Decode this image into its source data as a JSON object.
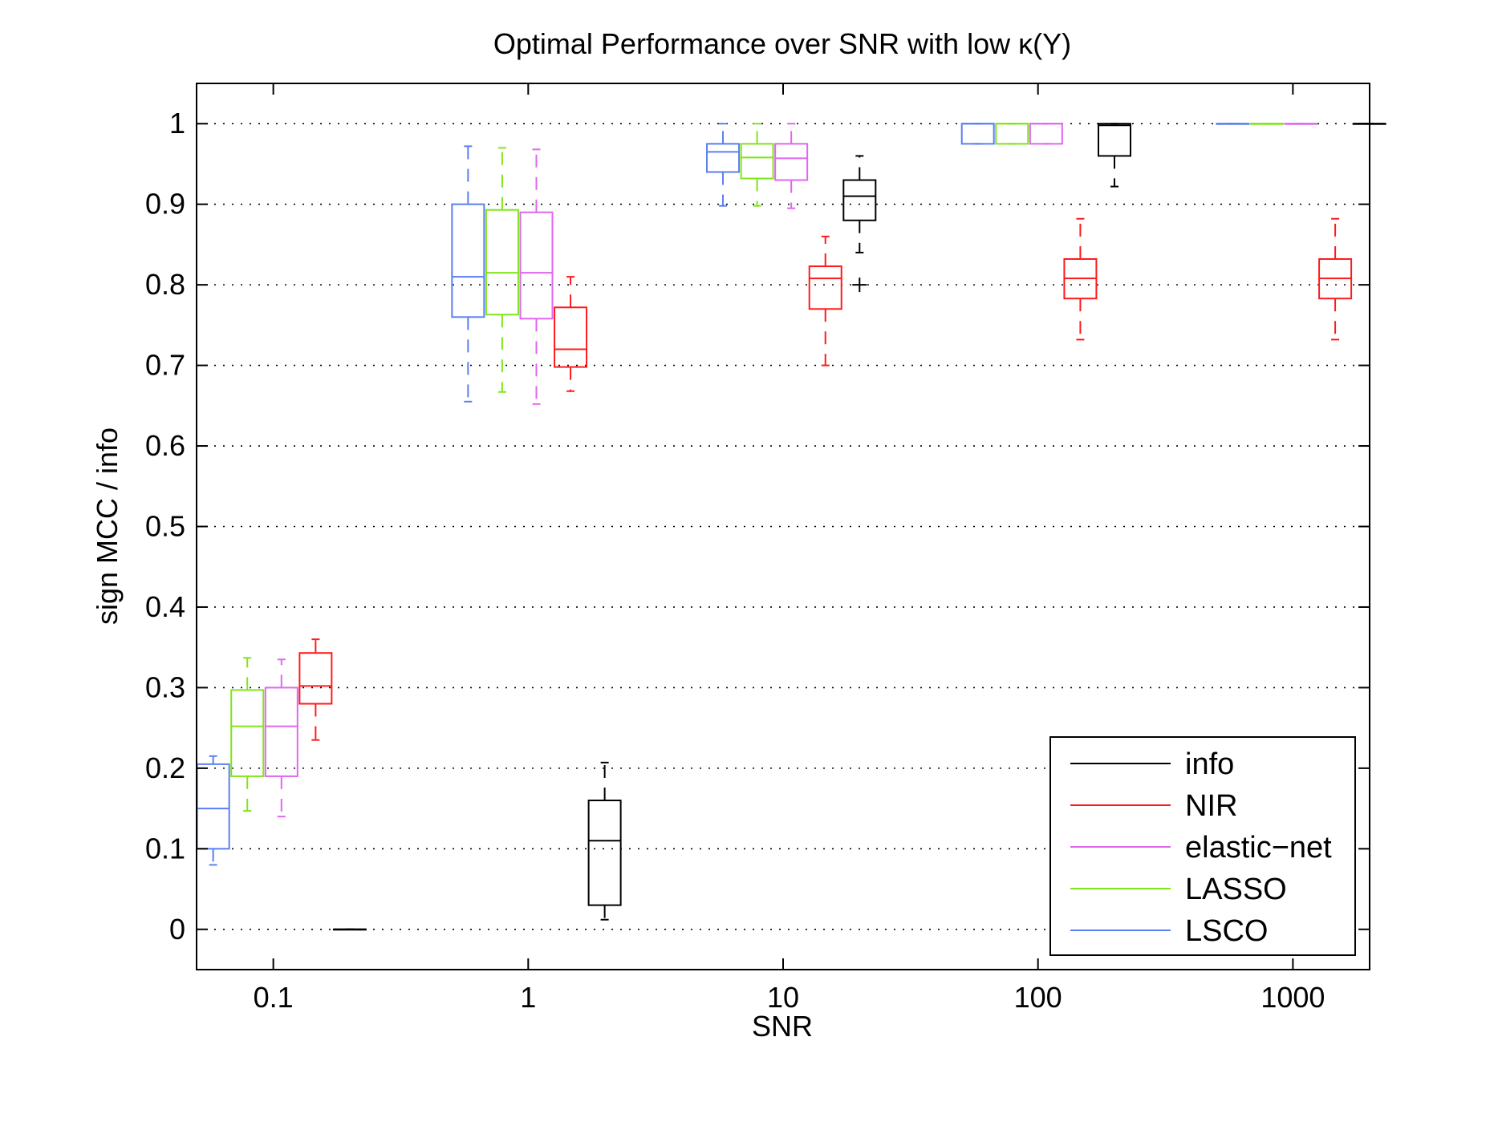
{
  "chart_data": {
    "type": "box",
    "title": "Optimal Performance over SNR with low κ(Y)",
    "xlabel": "SNR",
    "ylabel": "sign MCC / info",
    "x_scale": "log",
    "xlim": [
      0.05,
      2000
    ],
    "ylim": [
      -0.05,
      1.05
    ],
    "x_ticks": [
      0.1,
      1,
      10,
      100,
      1000
    ],
    "x_tick_labels": [
      "0.1",
      "1",
      "10",
      "100",
      "1000"
    ],
    "y_ticks": [
      0,
      0.1,
      0.2,
      0.3,
      0.4,
      0.5,
      0.6,
      0.7,
      0.8,
      0.9,
      1
    ],
    "y_tick_labels": [
      "0",
      "0.1",
      "0.2",
      "0.3",
      "0.4",
      "0.5",
      "0.6",
      "0.7",
      "0.8",
      "0.9",
      "1"
    ],
    "grid": "y-dotted",
    "legend_position": "bottom-right",
    "legend": [
      "info",
      "NIR",
      "elastic−net",
      "LASSO",
      "LSCO"
    ],
    "series_order": [
      "LSCO",
      "LASSO",
      "elastic−net",
      "NIR",
      "info"
    ],
    "colors": {
      "info": "#000000",
      "NIR": "#ff1a1a",
      "elastic−net": "#e066f0",
      "LASSO": "#7fe619",
      "LSCO": "#5b7ff0"
    },
    "snr_groups": [
      0.1,
      1,
      10,
      100,
      1000
    ],
    "series": [
      {
        "name": "LSCO",
        "boxes": [
          {
            "snr": 0.1,
            "whislo": 0.08,
            "q1": 0.1,
            "med": 0.15,
            "q3": 0.205,
            "whishi": 0.215
          },
          {
            "snr": 1,
            "whislo": 0.655,
            "q1": 0.76,
            "med": 0.81,
            "q3": 0.9,
            "whishi": 0.972
          },
          {
            "snr": 10,
            "whislo": 0.898,
            "q1": 0.94,
            "med": 0.965,
            "q3": 0.975,
            "whishi": 1.0
          },
          {
            "snr": 100,
            "whislo": 0.975,
            "q1": 0.975,
            "med": 1.0,
            "q3": 1.0,
            "whishi": 1.0
          },
          {
            "snr": 1000,
            "whislo": 1.0,
            "q1": 1.0,
            "med": 1.0,
            "q3": 1.0,
            "whishi": 1.0
          }
        ]
      },
      {
        "name": "LASSO",
        "boxes": [
          {
            "snr": 0.1,
            "whislo": 0.147,
            "q1": 0.19,
            "med": 0.252,
            "q3": 0.297,
            "whishi": 0.337
          },
          {
            "snr": 1,
            "whislo": 0.667,
            "q1": 0.763,
            "med": 0.815,
            "q3": 0.893,
            "whishi": 0.97
          },
          {
            "snr": 10,
            "whislo": 0.898,
            "q1": 0.932,
            "med": 0.958,
            "q3": 0.975,
            "whishi": 1.0
          },
          {
            "snr": 100,
            "whislo": 0.975,
            "q1": 0.975,
            "med": 1.0,
            "q3": 1.0,
            "whishi": 1.0
          },
          {
            "snr": 1000,
            "whislo": 1.0,
            "q1": 1.0,
            "med": 1.0,
            "q3": 1.0,
            "whishi": 1.0
          }
        ]
      },
      {
        "name": "elastic−net",
        "boxes": [
          {
            "snr": 0.1,
            "whislo": 0.14,
            "q1": 0.19,
            "med": 0.252,
            "q3": 0.3,
            "whishi": 0.335
          },
          {
            "snr": 1,
            "whislo": 0.652,
            "q1": 0.758,
            "med": 0.815,
            "q3": 0.89,
            "whishi": 0.968
          },
          {
            "snr": 10,
            "whislo": 0.895,
            "q1": 0.93,
            "med": 0.957,
            "q3": 0.975,
            "whishi": 1.0
          },
          {
            "snr": 100,
            "whislo": 0.975,
            "q1": 0.975,
            "med": 1.0,
            "q3": 1.0,
            "whishi": 1.0
          },
          {
            "snr": 1000,
            "whislo": 1.0,
            "q1": 1.0,
            "med": 1.0,
            "q3": 1.0,
            "whishi": 1.0
          }
        ]
      },
      {
        "name": "NIR",
        "boxes": [
          {
            "snr": 0.1,
            "whislo": 0.235,
            "q1": 0.28,
            "med": 0.302,
            "q3": 0.343,
            "whishi": 0.36
          },
          {
            "snr": 1,
            "whislo": 0.668,
            "q1": 0.698,
            "med": 0.72,
            "q3": 0.772,
            "whishi": 0.81
          },
          {
            "snr": 10,
            "whislo": 0.7,
            "q1": 0.77,
            "med": 0.808,
            "q3": 0.823,
            "whishi": 0.86
          },
          {
            "snr": 100,
            "whislo": 0.732,
            "q1": 0.783,
            "med": 0.808,
            "q3": 0.832,
            "whishi": 0.882
          },
          {
            "snr": 1000,
            "whislo": 0.732,
            "q1": 0.783,
            "med": 0.808,
            "q3": 0.832,
            "whishi": 0.882
          }
        ]
      },
      {
        "name": "info",
        "boxes": [
          {
            "snr": 0.1,
            "whislo": 0.0,
            "q1": 0.0,
            "med": 0.0,
            "q3": 0.0,
            "whishi": 0.0
          },
          {
            "snr": 1,
            "whislo": 0.012,
            "q1": 0.03,
            "med": 0.11,
            "q3": 0.16,
            "whishi": 0.207
          },
          {
            "snr": 10,
            "whislo": 0.84,
            "q1": 0.88,
            "med": 0.91,
            "q3": 0.93,
            "whishi": 0.96,
            "outliers": [
              0.8
            ]
          },
          {
            "snr": 100,
            "whislo": 0.922,
            "q1": 0.96,
            "med": 0.998,
            "q3": 1.0,
            "whishi": 1.0
          },
          {
            "snr": 1000,
            "whislo": 1.0,
            "q1": 1.0,
            "med": 1.0,
            "q3": 1.0,
            "whishi": 1.0
          }
        ]
      }
    ]
  }
}
